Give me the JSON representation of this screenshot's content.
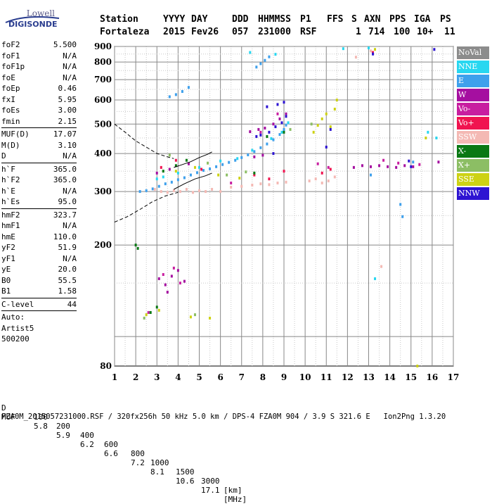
{
  "logo": {
    "top": "Lowell",
    "bottom": "DIGISONDE"
  },
  "header": {
    "labels": [
      "Station",
      "YYYY",
      "DAY",
      "DDD",
      "HHMMSS",
      "P1",
      "FFS",
      "S",
      "AXN",
      "PPS",
      "IGA",
      "PS"
    ],
    "values": [
      "Fortaleza",
      "2015",
      "Fev26",
      "057",
      "231000",
      "RSF",
      "",
      "1",
      "714",
      "100",
      "10+",
      "11"
    ]
  },
  "params": [
    {
      "label": "foF2",
      "value": "5.500"
    },
    {
      "label": "foF1",
      "value": "N/A"
    },
    {
      "label": "foF1p",
      "value": "N/A"
    },
    {
      "label": "foE",
      "value": "N/A"
    },
    {
      "label": "foEp",
      "value": "0.46"
    },
    {
      "label": "fxI",
      "value": "5.95"
    },
    {
      "label": "foEs",
      "value": "3.00"
    },
    {
      "label": "fmin",
      "value": "2.15"
    },
    {
      "sep": true
    },
    {
      "label": "MUF(D)",
      "value": "17.07"
    },
    {
      "label": "M(D)",
      "value": "3.10"
    },
    {
      "label": "D",
      "value": "N/A"
    },
    {
      "sep": true
    },
    {
      "label": "h`F",
      "value": "365.0"
    },
    {
      "label": "h`F2",
      "value": "365.0"
    },
    {
      "label": "h`E",
      "value": "N/A"
    },
    {
      "label": "h`Es",
      "value": "95.0"
    },
    {
      "sep": true
    },
    {
      "label": "hmF2",
      "value": "323.7"
    },
    {
      "label": "hmF1",
      "value": "N/A"
    },
    {
      "label": "hmE",
      "value": "110.0"
    },
    {
      "label": "yF2",
      "value": "51.9"
    },
    {
      "label": "yF1",
      "value": "N/A"
    },
    {
      "label": "yE",
      "value": "20.0"
    },
    {
      "label": "B0",
      "value": "55.5"
    },
    {
      "label": "B1",
      "value": "1.58"
    },
    {
      "sep": true
    },
    {
      "label": "C-level",
      "value": "44"
    },
    {
      "sep": true
    },
    {
      "text": "Auto:"
    },
    {
      "text": "Artist5"
    },
    {
      "text": "500200"
    }
  ],
  "legend": [
    {
      "label": "NoVal",
      "color": "#8c8c8c"
    },
    {
      "label": "NNE",
      "color": "#28d7f0"
    },
    {
      "label": "E",
      "color": "#3ea0ec"
    },
    {
      "label": "W",
      "color": "#a50fa0"
    },
    {
      "label": "Vo-",
      "color": "#c81ea0"
    },
    {
      "label": "Vo+",
      "color": "#f01450"
    },
    {
      "label": "SSW",
      "color": "#f4b9b4"
    },
    {
      "label": "X-",
      "color": "#0a7814"
    },
    {
      "label": "X+",
      "color": "#8cbe64"
    },
    {
      "label": "SSE",
      "color": "#cdd214"
    },
    {
      "label": "NNW",
      "color": "#2d14d2"
    }
  ],
  "footer": {
    "d_label": "D",
    "d_values": [
      "100",
      "200",
      "400",
      "600",
      "800",
      "1000",
      "1500",
      "3000",
      "[km]"
    ],
    "muf_label": "MUF",
    "muf_values": [
      "5.8",
      "5.9",
      "6.2",
      "6.6",
      "7.2",
      "8.1",
      "10.6",
      "17.1",
      "[MHz]"
    ],
    "file_line": "FZA0M_2015057231000.RSF / 320fx256h 50 kHz 5.0 km / DPS-4 FZA0M 904 / 3.9 S 321.6 E   Ion2Png 1.3.20"
  },
  "chart_data": {
    "type": "scatter",
    "title": "",
    "xlabel": "",
    "ylabel": "",
    "xlim": [
      1,
      17
    ],
    "ylim": [
      80,
      900
    ],
    "x_ticks": [
      1,
      2,
      3,
      4,
      5,
      6,
      7,
      8,
      9,
      10,
      11,
      12,
      13,
      14,
      15,
      16,
      17
    ],
    "y_ticks": [
      80,
      200,
      300,
      400,
      500,
      600,
      700,
      800,
      900
    ],
    "y_scale": "log",
    "grid": true,
    "legend_position": "right",
    "series": [
      {
        "name": "E",
        "color": "#3ea0ec",
        "points": [
          [
            2.2,
            300
          ],
          [
            2.5,
            302
          ],
          [
            2.8,
            306
          ],
          [
            3.1,
            312
          ],
          [
            3.4,
            318
          ],
          [
            3.7,
            322
          ],
          [
            4.0,
            328
          ],
          [
            4.3,
            333
          ],
          [
            4.6,
            340
          ],
          [
            4.9,
            346
          ],
          [
            5.2,
            352
          ],
          [
            5.5,
            356
          ],
          [
            5.8,
            362
          ],
          [
            6.1,
            368
          ],
          [
            6.4,
            374
          ],
          [
            6.7,
            380
          ],
          [
            7.0,
            388
          ],
          [
            7.3,
            396
          ],
          [
            7.6,
            406
          ],
          [
            7.9,
            418
          ],
          [
            8.2,
            430
          ],
          [
            8.5,
            444
          ],
          [
            8.8,
            462
          ],
          [
            9.0,
            480
          ],
          [
            9.1,
            496
          ],
          [
            3.6,
            615
          ],
          [
            3.9,
            625
          ],
          [
            4.2,
            640
          ],
          [
            4.5,
            660
          ],
          [
            7.7,
            770
          ],
          [
            7.9,
            790
          ],
          [
            8.1,
            810
          ],
          [
            8.3,
            832
          ],
          [
            14.5,
            272
          ],
          [
            14.6,
            248
          ],
          [
            13.1,
            340
          ],
          [
            15.1,
            375
          ]
        ]
      },
      {
        "name": "NNE",
        "color": "#28d7f0",
        "points": [
          [
            3.0,
            330
          ],
          [
            3.3,
            335
          ],
          [
            4.0,
            345
          ],
          [
            5.0,
            360
          ],
          [
            6.0,
            378
          ],
          [
            6.8,
            385
          ],
          [
            7.5,
            410
          ],
          [
            8.4,
            448
          ],
          [
            8.9,
            470
          ],
          [
            9.2,
            505
          ],
          [
            7.4,
            860
          ],
          [
            8.6,
            848
          ],
          [
            11.8,
            885
          ],
          [
            13.0,
            890
          ],
          [
            13.3,
            155
          ],
          [
            15.8,
            470
          ],
          [
            16.2,
            450
          ]
        ]
      },
      {
        "name": "W",
        "color": "#a50fa0",
        "points": [
          [
            3.1,
            155
          ],
          [
            3.4,
            148
          ],
          [
            3.7,
            158
          ],
          [
            4.0,
            165
          ],
          [
            4.3,
            152
          ],
          [
            3.5,
            140
          ],
          [
            3.0,
            345
          ],
          [
            3.6,
            355
          ],
          [
            4.5,
            370
          ],
          [
            7.4,
            472
          ],
          [
            7.8,
            480
          ],
          [
            8.1,
            485
          ],
          [
            8.5,
            500
          ],
          [
            8.8,
            520
          ],
          [
            9.1,
            540
          ],
          [
            7.6,
            390
          ],
          [
            8.0,
            395
          ],
          [
            12.3,
            360
          ],
          [
            12.7,
            365
          ],
          [
            13.1,
            362
          ],
          [
            13.5,
            365
          ],
          [
            13.9,
            362
          ],
          [
            14.3,
            360
          ],
          [
            14.7,
            365
          ],
          [
            15.1,
            362
          ],
          [
            16.3,
            375
          ]
        ]
      },
      {
        "name": "Vo-",
        "color": "#c81ea0",
        "points": [
          [
            3.3,
            160
          ],
          [
            3.8,
            168
          ],
          [
            4.1,
            150
          ],
          [
            2.6,
            120
          ],
          [
            6.5,
            320
          ],
          [
            7.9,
            470
          ],
          [
            8.7,
            540
          ],
          [
            10.6,
            370
          ],
          [
            11.1,
            360
          ],
          [
            13.7,
            380
          ],
          [
            14.4,
            372
          ],
          [
            15.4,
            368
          ]
        ]
      },
      {
        "name": "Vo+",
        "color": "#f01450",
        "points": [
          [
            3.2,
            360
          ],
          [
            3.9,
            380
          ],
          [
            5.1,
            355
          ],
          [
            7.6,
            340
          ],
          [
            8.3,
            330
          ],
          [
            9.0,
            350
          ],
          [
            10.8,
            345
          ],
          [
            11.2,
            355
          ],
          [
            13.2,
            860
          ]
        ]
      },
      {
        "name": "SSW",
        "color": "#f4b9b4",
        "points": [
          [
            2.9,
            305
          ],
          [
            3.2,
            300
          ],
          [
            3.5,
            298
          ],
          [
            3.8,
            302
          ],
          [
            4.1,
            300
          ],
          [
            4.4,
            305
          ],
          [
            4.7,
            298
          ],
          [
            5.0,
            302
          ],
          [
            5.3,
            300
          ],
          [
            5.6,
            305
          ],
          [
            6.0,
            300
          ],
          [
            6.5,
            310
          ],
          [
            7.0,
            312
          ],
          [
            7.5,
            315
          ],
          [
            7.9,
            318
          ],
          [
            8.3,
            316
          ],
          [
            8.7,
            320
          ],
          [
            9.1,
            322
          ],
          [
            10.2,
            325
          ],
          [
            10.5,
            330
          ],
          [
            10.8,
            320
          ],
          [
            11.1,
            325
          ],
          [
            11.4,
            335
          ],
          [
            12.4,
            830
          ],
          [
            13.1,
            870
          ],
          [
            13.6,
            170
          ]
        ]
      },
      {
        "name": "X-",
        "color": "#0a7814",
        "points": [
          [
            2.0,
            200
          ],
          [
            2.1,
            195
          ],
          [
            2.7,
            120
          ],
          [
            3.0,
            125
          ],
          [
            3.3,
            350
          ],
          [
            3.9,
            365
          ],
          [
            4.4,
            380
          ],
          [
            7.6,
            345
          ],
          [
            8.2,
            455
          ],
          [
            9.0,
            470
          ]
        ]
      },
      {
        "name": "X+",
        "color": "#8cbe64",
        "points": [
          [
            2.4,
            115
          ],
          [
            4.8,
            118
          ],
          [
            3.6,
            395
          ],
          [
            5.4,
            372
          ],
          [
            6.3,
            340
          ],
          [
            7.2,
            348
          ],
          [
            9.3,
            480
          ],
          [
            10.3,
            500
          ]
        ]
      },
      {
        "name": "SSE",
        "color": "#cdd214",
        "points": [
          [
            2.5,
            118
          ],
          [
            3.1,
            122
          ],
          [
            4.6,
            116
          ],
          [
            5.5,
            115
          ],
          [
            3.9,
            350
          ],
          [
            4.8,
            360
          ],
          [
            5.9,
            340
          ],
          [
            6.9,
            332
          ],
          [
            10.4,
            470
          ],
          [
            10.6,
            495
          ],
          [
            10.8,
            520
          ],
          [
            11.0,
            540
          ],
          [
            11.2,
            490
          ],
          [
            11.4,
            560
          ],
          [
            13.3,
            880
          ],
          [
            15.3,
            80
          ],
          [
            15.7,
            450
          ],
          [
            11.5,
            600
          ]
        ]
      },
      {
        "name": "NNW",
        "color": "#2d14d2",
        "points": [
          [
            7.9,
            460
          ],
          [
            8.3,
            470
          ],
          [
            8.6,
            490
          ],
          [
            8.9,
            505
          ],
          [
            9.1,
            530
          ],
          [
            8.2,
            570
          ],
          [
            8.7,
            580
          ],
          [
            9.0,
            590
          ],
          [
            11.0,
            420
          ],
          [
            11.2,
            480
          ],
          [
            13.2,
            850
          ],
          [
            14.9,
            378
          ],
          [
            15.0,
            362
          ],
          [
            16.1,
            880
          ],
          [
            8.5,
            400
          ],
          [
            7.7,
            455
          ]
        ]
      }
    ],
    "curves": [
      {
        "name": "",
        "style": "dashed",
        "points": [
          [
            1.0,
            500
          ],
          [
            1.5,
            470
          ],
          [
            2.0,
            440
          ],
          [
            2.5,
            420
          ],
          [
            3.0,
            400
          ],
          [
            3.5,
            390
          ],
          [
            3.8,
            385
          ]
        ]
      },
      {
        "name": "",
        "style": "dashed",
        "points": [
          [
            1.0,
            238
          ],
          [
            1.6,
            248
          ],
          [
            2.2,
            262
          ],
          [
            2.8,
            278
          ],
          [
            3.4,
            290
          ],
          [
            4.0,
            298
          ]
        ]
      },
      {
        "name": "",
        "style": "solid",
        "points": [
          [
            3.8,
            360
          ],
          [
            4.2,
            368
          ],
          [
            4.6,
            376
          ],
          [
            5.0,
            388
          ],
          [
            5.4,
            398
          ],
          [
            5.6,
            405
          ]
        ]
      },
      {
        "name": "",
        "style": "solid",
        "points": [
          [
            3.8,
            305
          ],
          [
            4.3,
            318
          ],
          [
            4.8,
            330
          ],
          [
            5.3,
            338
          ],
          [
            5.6,
            345
          ]
        ]
      }
    ]
  }
}
